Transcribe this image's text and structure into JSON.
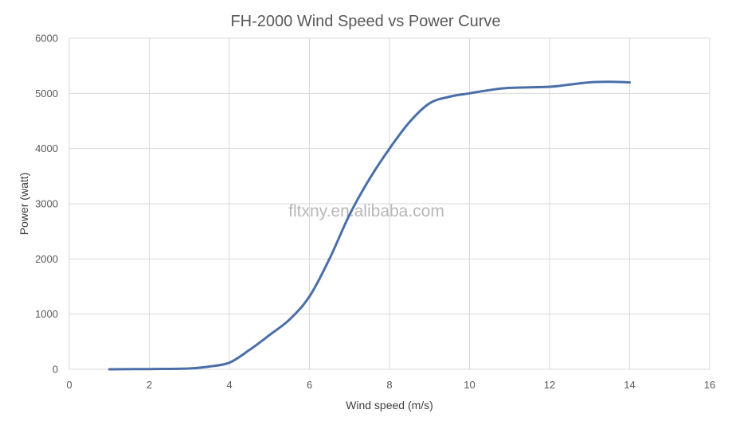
{
  "chart_data": {
    "type": "line",
    "title": "FH-2000 Wind Speed vs Power Curve",
    "xlabel": "Wind speed (m/s)",
    "ylabel": "Power (watt)",
    "xlim": [
      0,
      16
    ],
    "ylim": [
      0,
      6000
    ],
    "x_ticks": [
      "0",
      "2",
      "4",
      "6",
      "8",
      "10",
      "12",
      "14",
      "16"
    ],
    "y_ticks": [
      "0",
      "1000",
      "2000",
      "3000",
      "4000",
      "5000",
      "6000"
    ],
    "grid": true,
    "legend": "none",
    "series_color": "#4a6fa8",
    "series": [
      {
        "x": [
          1,
          2,
          3,
          3.5,
          4,
          4.5,
          5,
          5.5,
          6,
          6.5,
          7,
          7.5,
          8,
          8.5,
          9,
          9.5,
          10,
          10.5,
          11,
          12,
          12.5,
          13,
          13.5,
          14
        ],
        "values": [
          0,
          5,
          15,
          50,
          120,
          350,
          620,
          900,
          1320,
          2000,
          2800,
          3450,
          4000,
          4480,
          4820,
          4940,
          5000,
          5060,
          5100,
          5120,
          5160,
          5200,
          5210,
          5200
        ]
      }
    ]
  },
  "watermark": "fltxny.en.alibaba.com"
}
